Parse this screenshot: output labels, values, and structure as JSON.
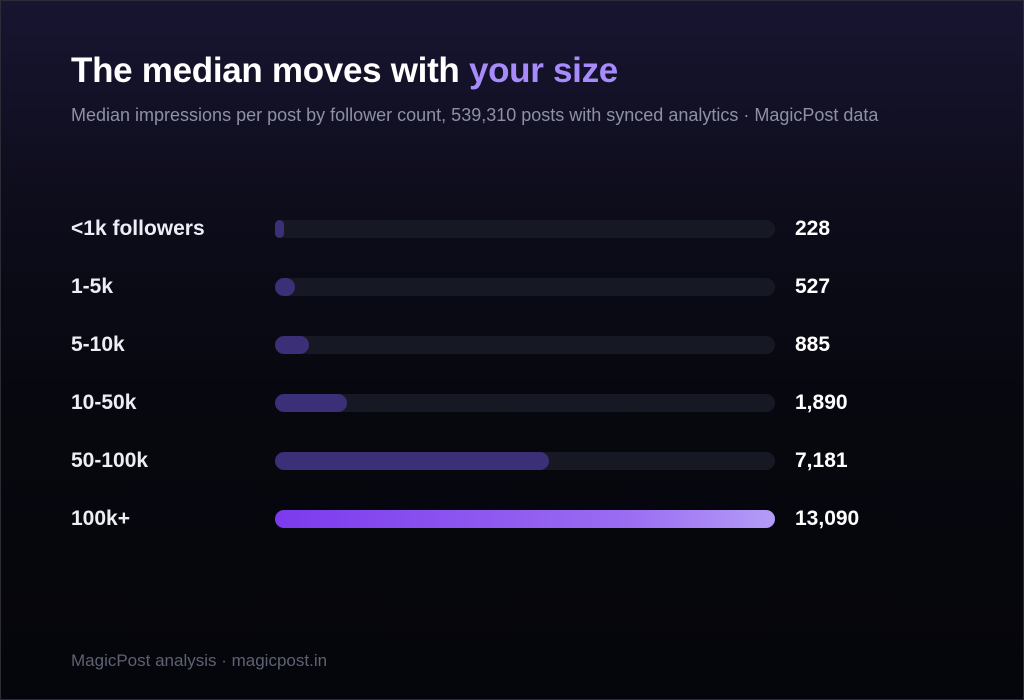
{
  "header": {
    "title_lead": "The median moves with ",
    "title_accent": "your size",
    "subtitle": "Median impressions per post by follower count, 539,310 posts with synced analytics · MagicPost data"
  },
  "footer": {
    "text": "MagicPost analysis · magicpost.in"
  },
  "colors": {
    "accent": "#a78bfa",
    "bar_default": "#3b2f78",
    "bar_highlight_start": "#7c3aed",
    "bar_highlight_end": "#b49cf7",
    "track": "#161823"
  },
  "chart_data": {
    "type": "bar",
    "orientation": "horizontal",
    "title": "The median moves with your size",
    "subtitle": "Median impressions per post by follower count, 539,310 posts with synced analytics · MagicPost data",
    "categories": [
      "<1k followers",
      "1-5k",
      "5-10k",
      "10-50k",
      "50-100k",
      "100k+"
    ],
    "values": [
      228,
      527,
      885,
      1890,
      7181,
      13090
    ],
    "value_labels": [
      "228",
      "527",
      "885",
      "1,890",
      "7,181",
      "13,090"
    ],
    "xlim": [
      0,
      13090
    ],
    "highlight_category": "100k+",
    "grid": false,
    "legend": "none"
  }
}
